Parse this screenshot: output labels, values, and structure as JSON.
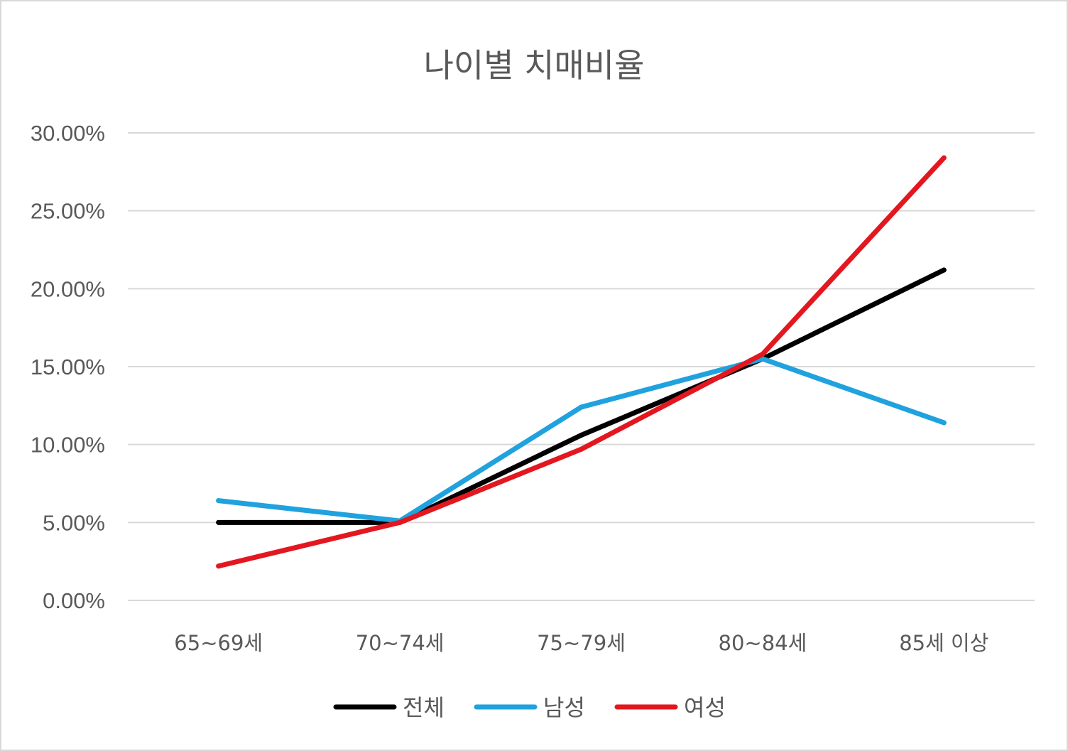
{
  "chart_data": {
    "type": "line",
    "title": "나이별 치매비율",
    "xlabel": "",
    "ylabel": "",
    "categories": [
      "65~69세",
      "70~74세",
      "75~79세",
      "80~84세",
      "85세 이상"
    ],
    "ylim": [
      0,
      0.3
    ],
    "yticks": [
      0,
      0.05,
      0.1,
      0.15,
      0.2,
      0.25,
      0.3
    ],
    "ytick_labels": [
      "0.00%",
      "5.00%",
      "10.00%",
      "15.00%",
      "20.00%",
      "25.00%",
      "30.00%"
    ],
    "grid": true,
    "legend_position": "bottom",
    "series": [
      {
        "name": "전체",
        "color": "#000000",
        "values": [
          0.05,
          0.05,
          0.106,
          0.155,
          0.212
        ]
      },
      {
        "name": "남성",
        "color": "#1fa2de",
        "values": [
          0.064,
          0.051,
          0.124,
          0.155,
          0.114
        ]
      },
      {
        "name": "여성",
        "color": "#e3171f",
        "values": [
          0.022,
          0.05,
          0.097,
          0.158,
          0.284
        ]
      }
    ]
  }
}
